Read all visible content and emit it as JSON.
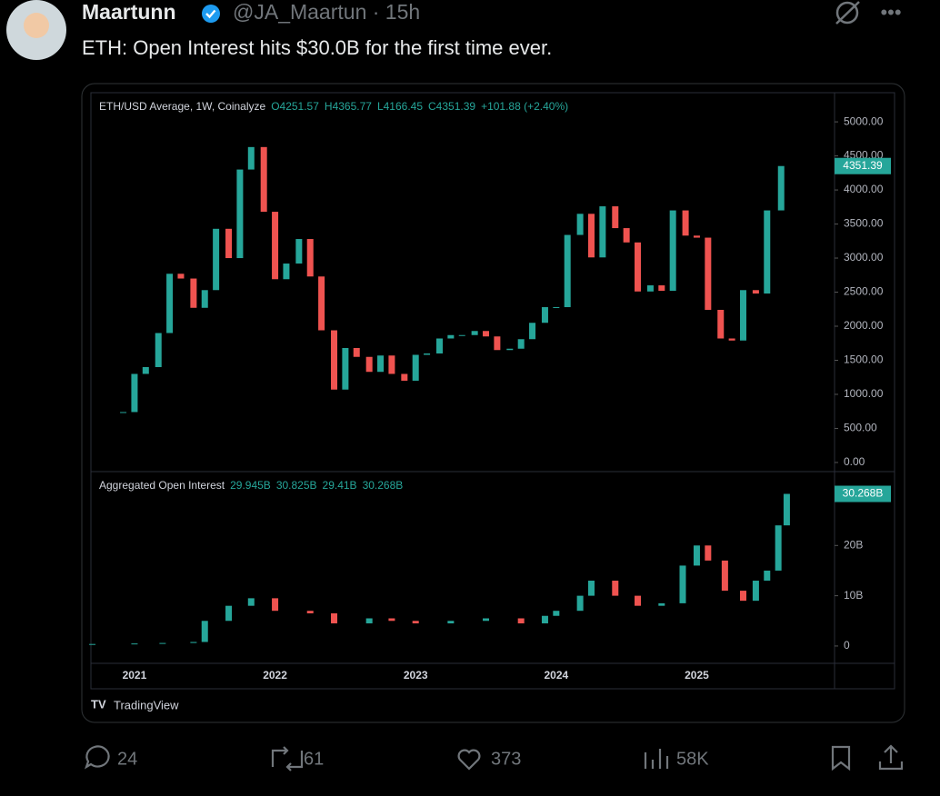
{
  "tweet": {
    "name": "Maartunn",
    "handle": "@JA_Maartun · 15h",
    "text": "ETH: Open Interest hits $30.0B for the first time ever."
  },
  "chart_data": [
    {
      "type": "candlestick",
      "title": "ETH/USD Average, 1W, Coinalyze",
      "ohlc": [
        "O4251.57",
        "H4365.77",
        "L4166.45",
        "C4351.39"
      ],
      "change": "+101.88 (+2.40%)",
      "price_tag": "4351.39",
      "x": [
        2020.92,
        2021.0,
        2021.08,
        2021.17,
        2021.25,
        2021.33,
        2021.42,
        2021.5,
        2021.58,
        2021.67,
        2021.75,
        2021.83,
        2021.92,
        2022.0,
        2022.08,
        2022.17,
        2022.25,
        2022.33,
        2022.42,
        2022.5,
        2022.58,
        2022.67,
        2022.75,
        2022.83,
        2022.92,
        2023.0,
        2023.08,
        2023.17,
        2023.25,
        2023.33,
        2023.42,
        2023.5,
        2023.58,
        2023.67,
        2023.75,
        2023.83,
        2023.92,
        2024.0,
        2024.08,
        2024.17,
        2024.25,
        2024.33,
        2024.42,
        2024.5,
        2024.58,
        2024.67,
        2024.75,
        2024.83,
        2024.92,
        2025.0,
        2025.08,
        2025.17,
        2025.25,
        2025.33,
        2025.42,
        2025.5,
        2025.6
      ],
      "values": [
        740,
        1300,
        1400,
        1900,
        2770,
        2700,
        2270,
        2530,
        3430,
        3000,
        4300,
        4630,
        3680,
        2690,
        2920,
        3280,
        2730,
        1940,
        1070,
        1680,
        1550,
        1330,
        1570,
        1300,
        1200,
        1580,
        1600,
        1820,
        1870,
        1870,
        1930,
        1850,
        1650,
        1670,
        1810,
        2050,
        2280,
        2280,
        3340,
        3650,
        3010,
        3760,
        3440,
        3230,
        2510,
        2600,
        2520,
        3700,
        3330,
        3300,
        2240,
        1820,
        1790,
        2530,
        2480,
        3700,
        4351.39
      ],
      "xlim": [
        2020.69,
        2025.98
      ],
      "xticks": [
        2021,
        2022,
        2023,
        2024,
        2025
      ],
      "ylim": [
        -134,
        5428
      ],
      "yticks": [
        {
          "value": 0,
          "label": "0.00"
        },
        {
          "value": 500,
          "label": "500.00"
        },
        {
          "value": 1000,
          "label": "1000.00"
        },
        {
          "value": 1500,
          "label": "1500.00"
        },
        {
          "value": 2000,
          "label": "2000.00"
        },
        {
          "value": 2500,
          "label": "2500.00"
        },
        {
          "value": 3000,
          "label": "3000.00"
        },
        {
          "value": 3500,
          "label": "3500.00"
        },
        {
          "value": 4000,
          "label": "4000.00"
        },
        {
          "value": 4500,
          "label": "4500.00"
        },
        {
          "value": 5000,
          "label": "5000.00"
        }
      ]
    },
    {
      "type": "candlestick",
      "title": "Aggregated Open Interest",
      "ohlc": [
        "29.945B",
        "30.825B",
        "29.41B",
        "30.268B"
      ],
      "price_tag": "30.268B",
      "x": [
        2020.7,
        2021.0,
        2021.2,
        2021.42,
        2021.5,
        2021.67,
        2021.83,
        2022.0,
        2022.25,
        2022.42,
        2022.67,
        2022.83,
        2023.0,
        2023.25,
        2023.5,
        2023.75,
        2023.92,
        2024.0,
        2024.17,
        2024.25,
        2024.42,
        2024.58,
        2024.75,
        2024.9,
        2025.0,
        2025.08,
        2025.2,
        2025.33,
        2025.42,
        2025.5,
        2025.58,
        2025.64
      ],
      "values": [
        0.4,
        0.5,
        0.6,
        0.8,
        5,
        8,
        9.5,
        7,
        6.5,
        4.5,
        5.5,
        5,
        4.5,
        5,
        5.5,
        4.5,
        6,
        7,
        10,
        13,
        10,
        8,
        8.5,
        16,
        20,
        17,
        11,
        9,
        13,
        15,
        24,
        30.268
      ],
      "xlim": [
        2020.69,
        2025.98
      ],
      "ylim": [
        -3.45,
        34.7
      ],
      "yticks": [
        0,
        {
          "value": 10,
          "label": "10B"
        },
        {
          "value": 20,
          "label": "20B"
        }
      ]
    }
  ],
  "brand": "TradingView",
  "footer": {
    "replies": "24",
    "reposts": "61",
    "likes": "373",
    "views": "58K"
  }
}
